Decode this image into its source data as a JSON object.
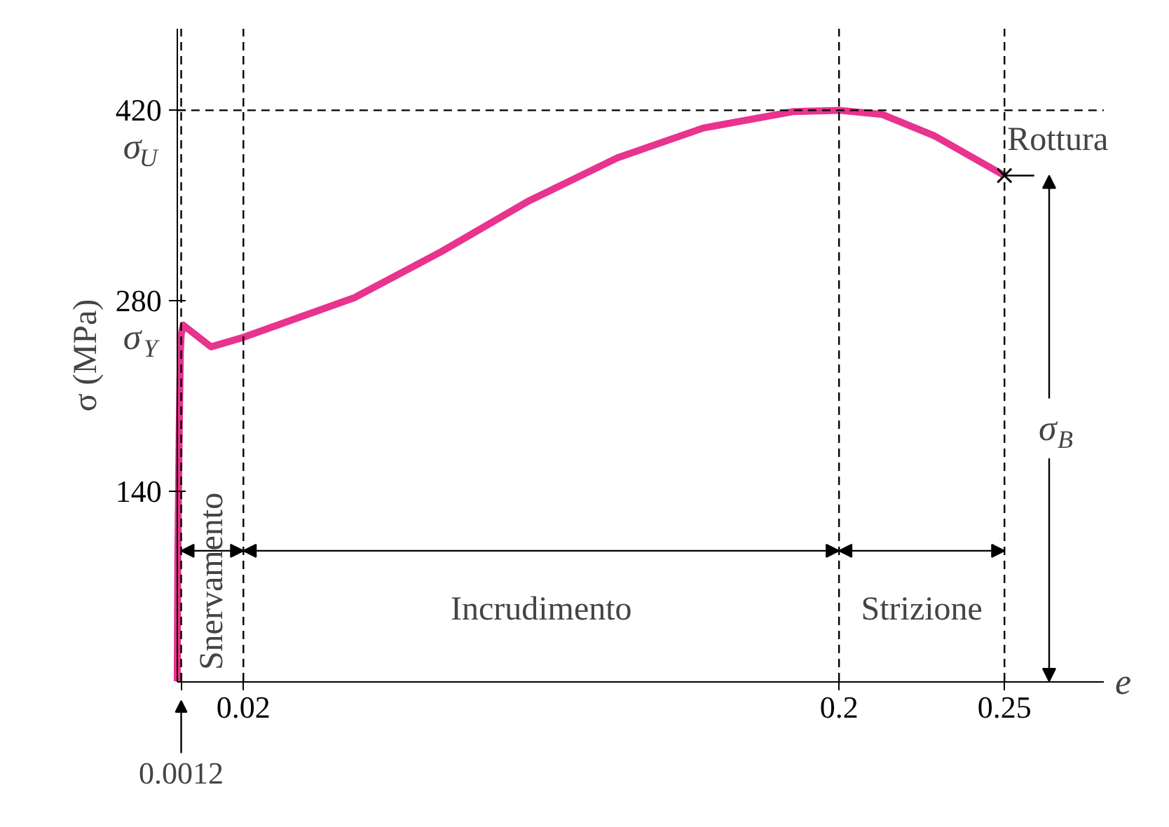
{
  "chart_data": {
    "type": "line",
    "xlabel": "e",
    "ylabel": "σ (MPa)",
    "x": [
      0,
      0.00018,
      0.0006,
      0.00096,
      0.0012,
      0.0018,
      0.0102,
      0.02,
      0.0534,
      0.0798,
      0.106,
      0.133,
      0.159,
      0.186,
      0.2,
      0.213,
      0.229,
      0.25
    ],
    "series": [
      {
        "color": "#e8338f",
        "values": [
          0,
          90,
          184,
          243,
          255,
          262,
          246,
          253,
          282,
          316,
          353,
          385,
          407,
          419,
          420,
          417,
          401,
          372
        ]
      }
    ],
    "xlim": [
      0,
      0.28
    ],
    "ylim": [
      0,
      480
    ],
    "xticks": [
      {
        "value": 0.0012,
        "label": null
      },
      0.02,
      0.2,
      0.25
    ],
    "yticks": [
      140,
      280,
      420
    ],
    "grid": false,
    "line_style": "solid",
    "ref_lines": [
      {
        "axis": "y",
        "value": 420,
        "line_style": "dashed",
        "color": "#000000"
      },
      {
        "axis": "x",
        "value": 0.0012,
        "line_style": "dashed",
        "color": "#000000"
      },
      {
        "axis": "x",
        "value": 0.02,
        "line_style": "dashed",
        "color": "#000000"
      },
      {
        "axis": "x",
        "value": 0.2,
        "line_style": "dashed",
        "color": "#000000"
      },
      {
        "axis": "x",
        "value": 0.25,
        "line_style": "dashed",
        "color": "#000000"
      }
    ],
    "annotations": [
      {
        "text": "σ$_{U}$",
        "x": 0,
        "y": 420
      },
      {
        "text": "σ$_{Y}$",
        "x": 0,
        "y": 255
      },
      {
        "text": "0.0012",
        "x": 0.0012,
        "y": 0
      },
      {
        "text": "Rottura",
        "x": 0.25,
        "y": 372
      },
      "Snervamento",
      "Incrudimento",
      "Strizione",
      "σ$_{B}$"
    ]
  }
}
